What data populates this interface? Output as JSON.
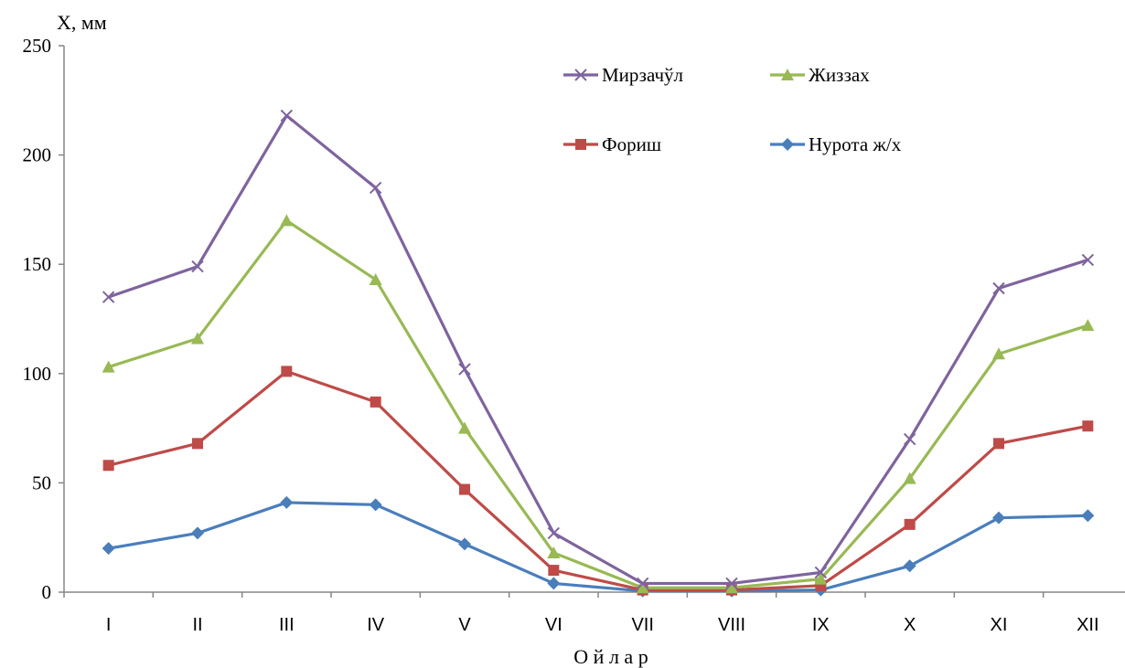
{
  "chart_data": {
    "type": "line",
    "ylabel": "X, мм",
    "xlabel": "О й л а р",
    "categories": [
      "I",
      "II",
      "III",
      "IV",
      "V",
      "VI",
      "VII",
      "VIII",
      "IX",
      "X",
      "XI",
      "XII"
    ],
    "ylim": [
      0,
      250
    ],
    "yticks": [
      "0",
      "50",
      "100",
      "150",
      "200",
      "250"
    ],
    "grid": false,
    "legend_position": "top-right",
    "series": [
      {
        "name": "Мирзачўл",
        "marker": "x",
        "color": "#7E649E",
        "values": [
          135,
          149,
          218,
          185,
          102,
          27,
          4,
          4,
          9,
          70,
          139,
          152
        ]
      },
      {
        "name": "Жиззах",
        "marker": "triangle",
        "color": "#98B954",
        "values": [
          103,
          116,
          170,
          143,
          75,
          18,
          2,
          2,
          6,
          52,
          109,
          122
        ]
      },
      {
        "name": "Фориш",
        "marker": "square",
        "color": "#BE4B48",
        "values": [
          58,
          68,
          101,
          87,
          47,
          10,
          1,
          1,
          3,
          31,
          68,
          76
        ]
      },
      {
        "name": "Нурота ж/х",
        "marker": "diamond",
        "color": "#4A7EBB",
        "values": [
          20,
          27,
          41,
          40,
          22,
          4,
          0.5,
          0.5,
          1,
          12,
          34,
          35
        ]
      }
    ]
  }
}
